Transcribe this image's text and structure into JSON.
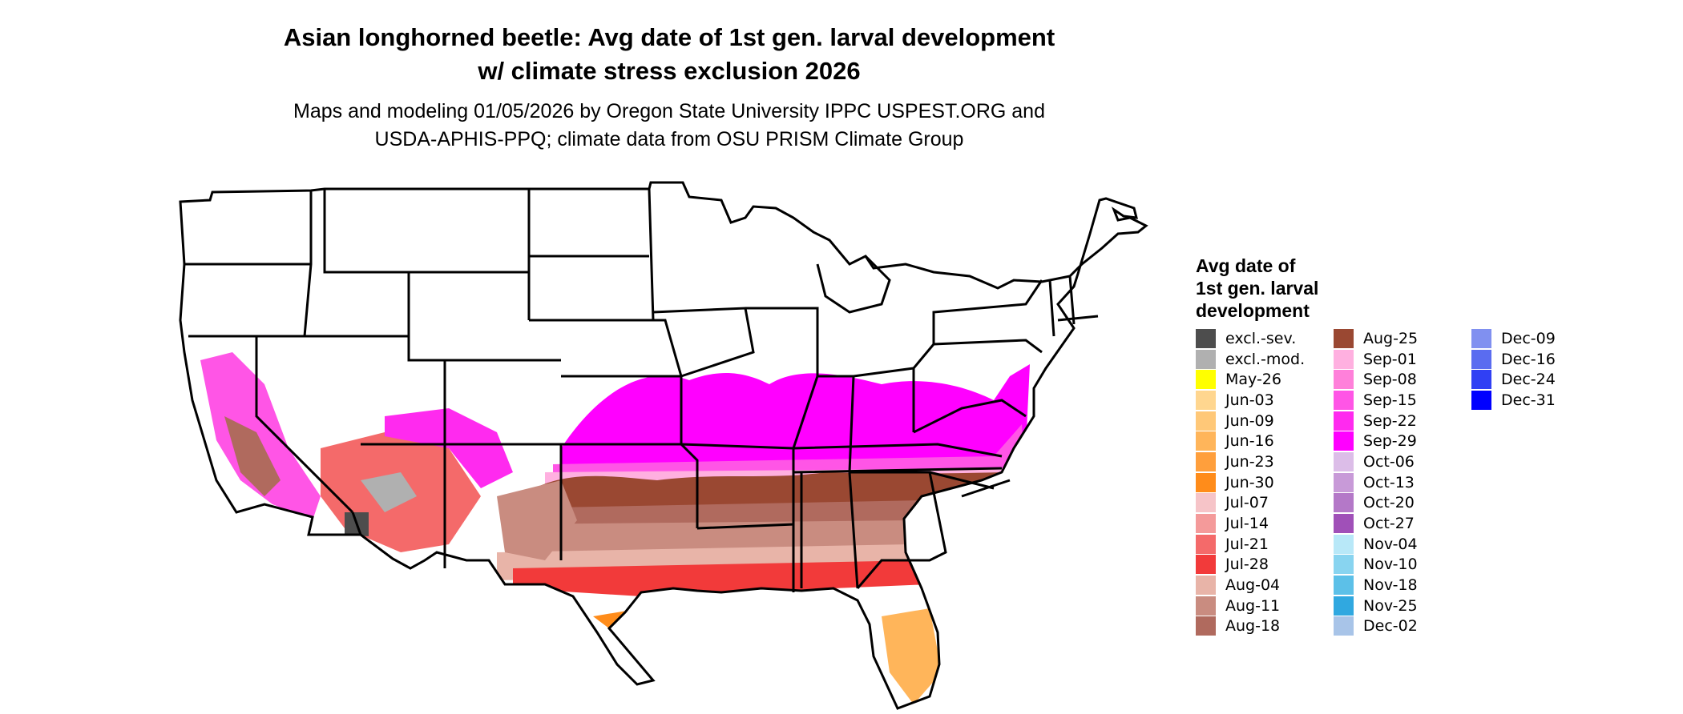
{
  "title_line1": "Asian longhorned beetle: Avg date of 1st gen. larval development",
  "title_line2": "w/ climate stress exclusion 2026",
  "subtitle_line1": "Maps and modeling 01/05/2026 by Oregon State University IPPC USPEST.ORG and",
  "subtitle_line2": "USDA-APHIS-PPQ; climate data from OSU PRISM Climate Group",
  "legend": {
    "title_line1": "Avg date of",
    "title_line2": "1st gen. larval",
    "title_line3": "development",
    "items": [
      {
        "label": "excl.-sev.",
        "color": "#4d4d4d"
      },
      {
        "label": "excl.-mod.",
        "color": "#b0b0b0"
      },
      {
        "label": "May-26",
        "color": "#ffff00"
      },
      {
        "label": "Jun-03",
        "color": "#ffd68f"
      },
      {
        "label": "Jun-09",
        "color": "#ffc878"
      },
      {
        "label": "Jun-16",
        "color": "#ffb55a"
      },
      {
        "label": "Jun-23",
        "color": "#ff9f3c"
      },
      {
        "label": "Jun-30",
        "color": "#ff8c1a"
      },
      {
        "label": "Jul-07",
        "color": "#f6c4c8"
      },
      {
        "label": "Jul-14",
        "color": "#f49a9a"
      },
      {
        "label": "Jul-21",
        "color": "#f46a6a"
      },
      {
        "label": "Jul-28",
        "color": "#f23a3a"
      },
      {
        "label": "Aug-04",
        "color": "#e8b4a8"
      },
      {
        "label": "Aug-11",
        "color": "#c98c80"
      },
      {
        "label": "Aug-18",
        "color": "#b06a5e"
      },
      {
        "label": "Aug-25",
        "color": "#9a4832"
      },
      {
        "label": "Sep-01",
        "color": "#ffb0e0"
      },
      {
        "label": "Sep-08",
        "color": "#ff80da"
      },
      {
        "label": "Sep-15",
        "color": "#ff55e6"
      },
      {
        "label": "Sep-22",
        "color": "#ff2aef"
      },
      {
        "label": "Sep-29",
        "color": "#ff00ff"
      },
      {
        "label": "Oct-06",
        "color": "#dcbde8"
      },
      {
        "label": "Oct-13",
        "color": "#c89ad8"
      },
      {
        "label": "Oct-20",
        "color": "#b478c8"
      },
      {
        "label": "Oct-27",
        "color": "#a050b8"
      },
      {
        "label": "Nov-04",
        "color": "#b8e8f8"
      },
      {
        "label": "Nov-10",
        "color": "#88d4f0"
      },
      {
        "label": "Nov-18",
        "color": "#5cc0e8"
      },
      {
        "label": "Nov-25",
        "color": "#30a8e0"
      },
      {
        "label": "Dec-02",
        "color": "#a8c4e8"
      },
      {
        "label": "Dec-09",
        "color": "#8090f0"
      },
      {
        "label": "Dec-16",
        "color": "#5a6cf0"
      },
      {
        "label": "Dec-24",
        "color": "#3040f4"
      },
      {
        "label": "Dec-31",
        "color": "#0000ff"
      }
    ]
  }
}
